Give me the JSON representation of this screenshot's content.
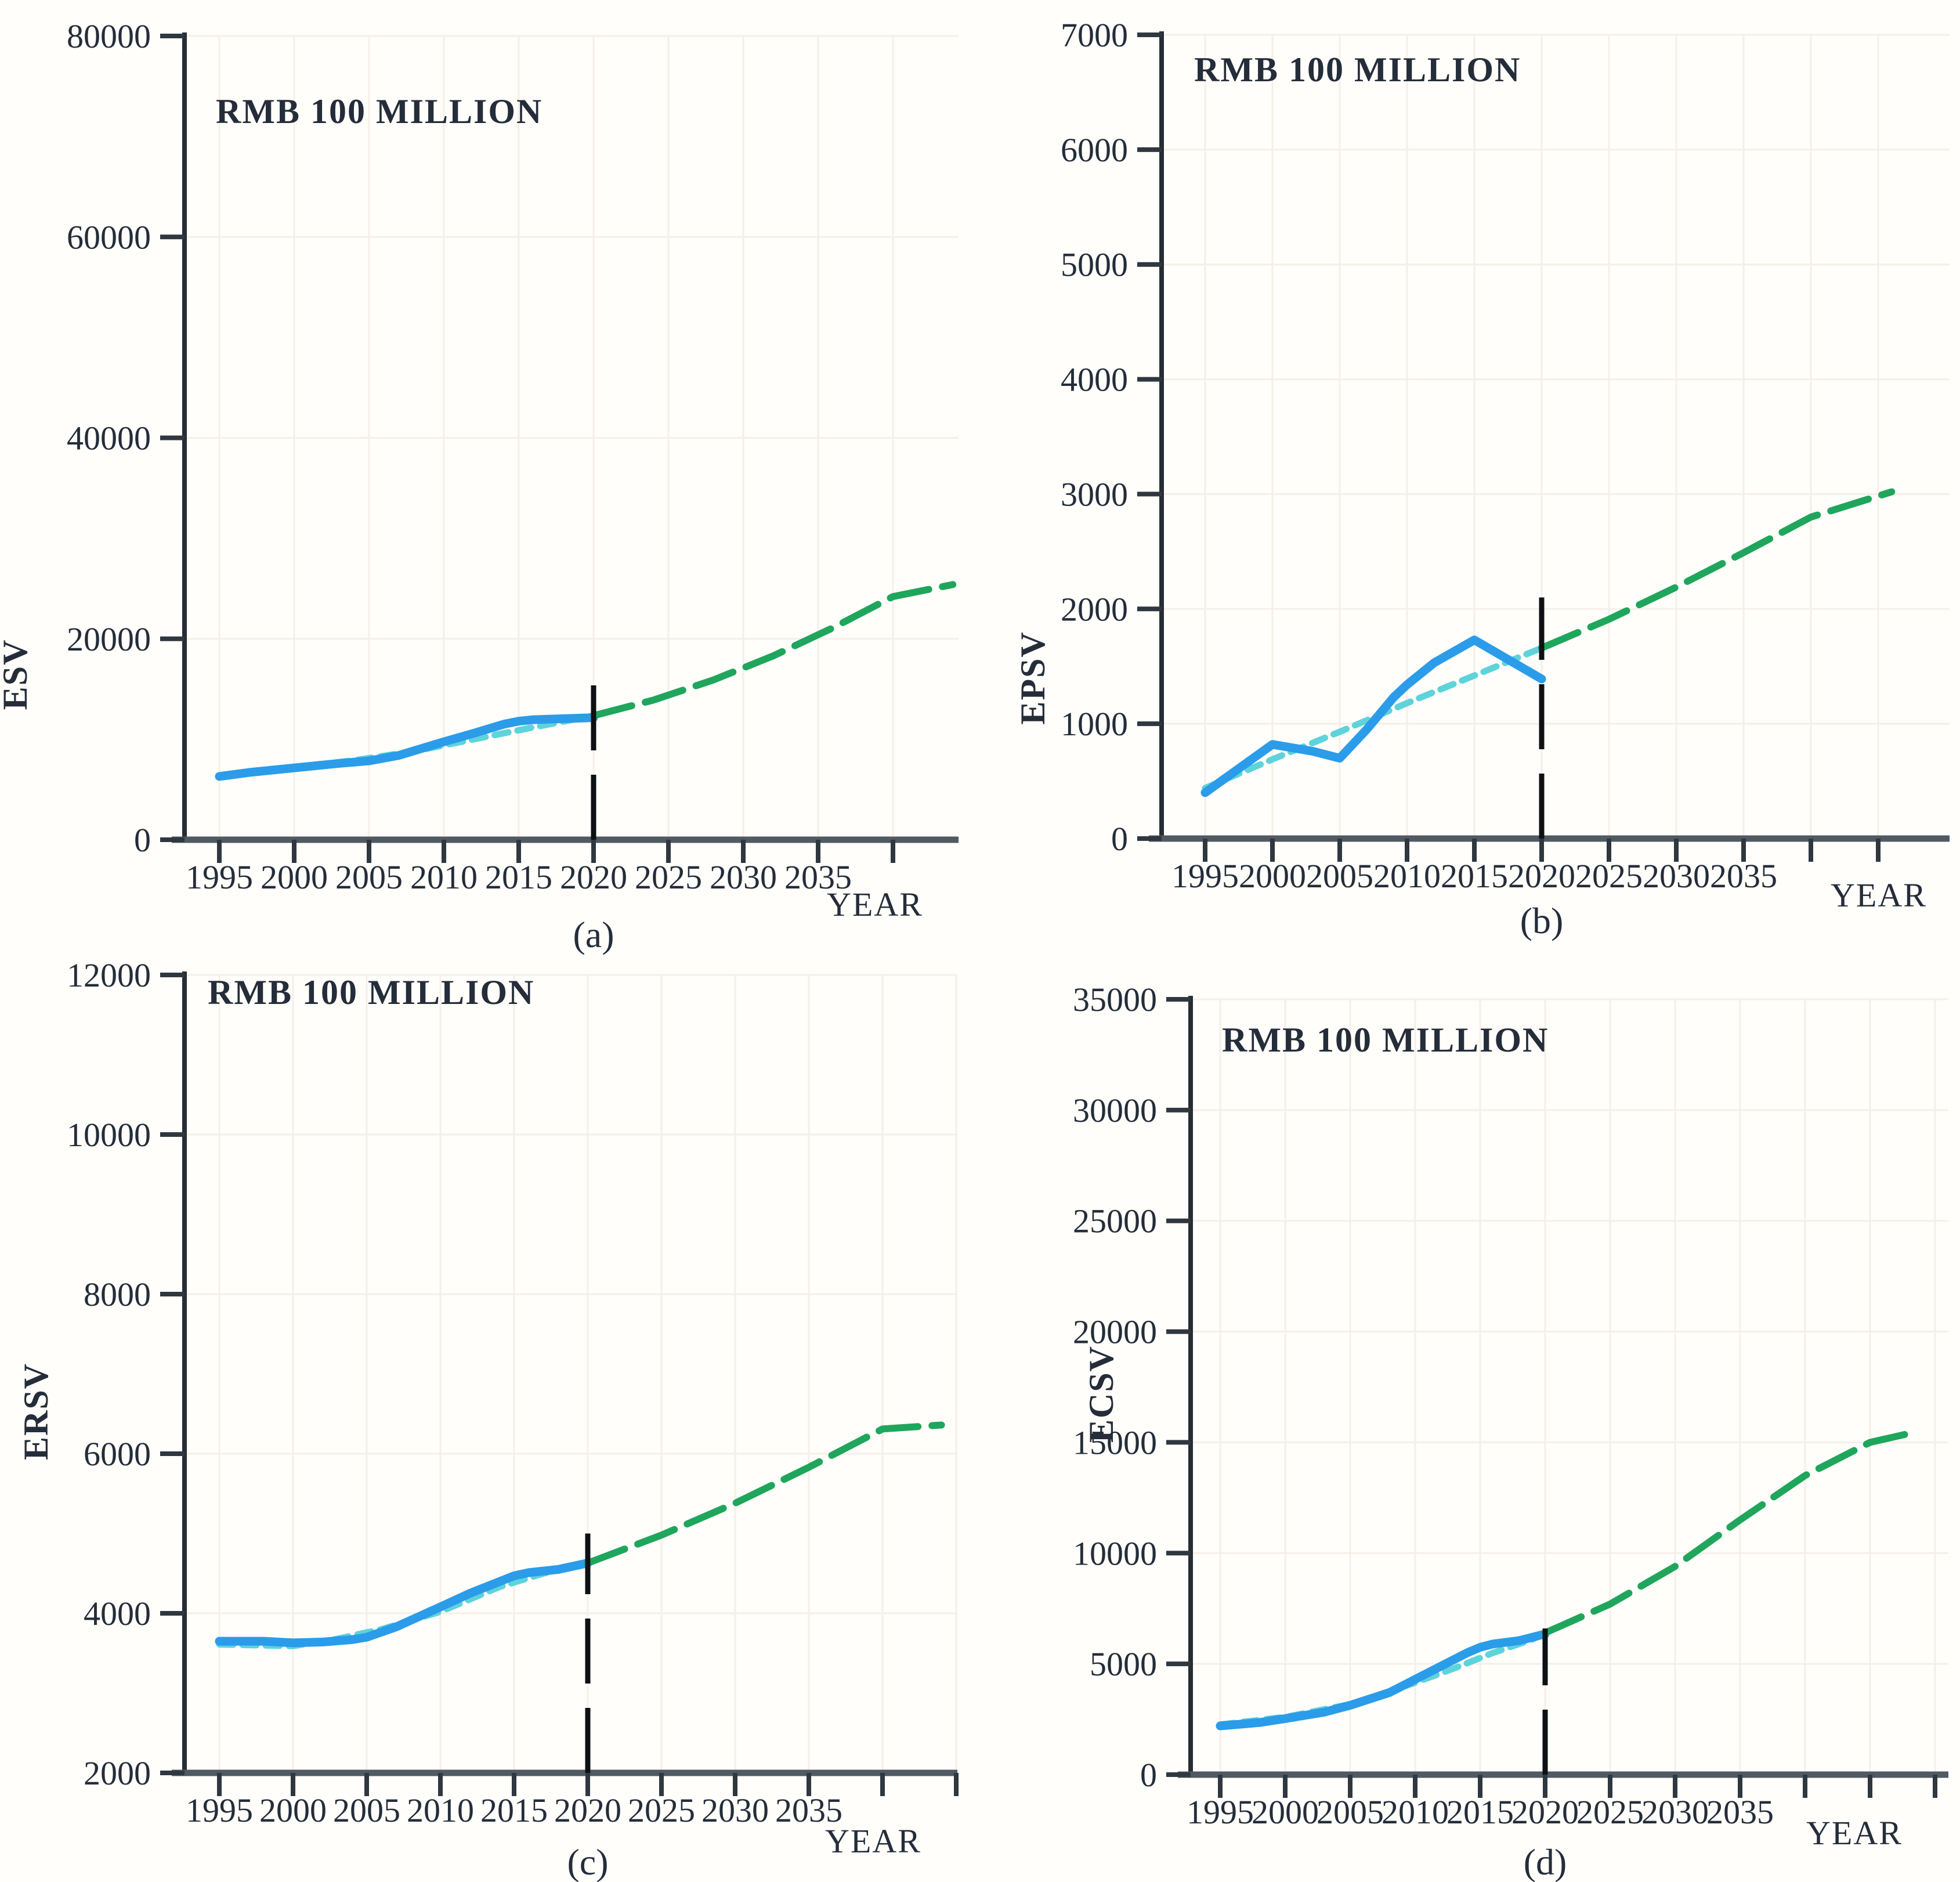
{
  "figure": {
    "unit_label": "RMB 100 MILLION",
    "x_axis_title": "YEAR",
    "background": "#fffefb",
    "colors": {
      "observed": "#2b9ce9",
      "fitted": "#5ed3da",
      "projection": "#1fa65c",
      "divider": "#0d1114",
      "x_axis": "#515a62",
      "y_axis": "#262d34",
      "tick": "#2f373f",
      "grid": "#f5efe8",
      "text": "#242d39"
    },
    "x_tick_labels": [
      "1995",
      "2000",
      "2005",
      "2010",
      "2015",
      "2020",
      "2025",
      "2030",
      "2035"
    ]
  },
  "chart_data": [
    {
      "id": "a",
      "type": "line",
      "panel_label": "(a)",
      "ylabel": "ESV",
      "unit_label": "RMB 100 MILLION",
      "xlabel": "YEAR",
      "ylim": [
        0,
        80000
      ],
      "yticks": [
        0,
        20000,
        40000,
        60000,
        80000
      ],
      "xticks": [
        1995,
        2000,
        2005,
        2010,
        2015,
        2020,
        2025,
        2030,
        2035,
        2040
      ],
      "xtick_labels": [
        "1995",
        "2000",
        "2005",
        "2010",
        "2015",
        "2020",
        "2025",
        "2030",
        "2035"
      ],
      "vline_year": 2020,
      "vline_top": 16000,
      "series": [
        {
          "name": "fitted",
          "points": [
            [
              1995,
              6400
            ],
            [
              2000,
              7200
            ],
            [
              2004,
              7900
            ],
            [
              2008,
              8800
            ],
            [
              2012,
              10000
            ],
            [
              2016,
              11200
            ],
            [
              2019,
              12050
            ],
            [
              2020,
              12350
            ]
          ]
        },
        {
          "name": "observed",
          "points": [
            [
              1995,
              6300
            ],
            [
              1997,
              6700
            ],
            [
              2000,
              7150
            ],
            [
              2003,
              7600
            ],
            [
              2005,
              7850
            ],
            [
              2007,
              8400
            ],
            [
              2010,
              9750
            ],
            [
              2012,
              10600
            ],
            [
              2014,
              11500
            ],
            [
              2015,
              11800
            ],
            [
              2016,
              11950
            ],
            [
              2018,
              12050
            ],
            [
              2020,
              12150
            ]
          ]
        },
        {
          "name": "projection",
          "points": [
            [
              2020,
              12350
            ],
            [
              2024,
              13900
            ],
            [
              2028,
              15900
            ],
            [
              2032,
              18300
            ],
            [
              2036,
              21100
            ],
            [
              2040,
              24200
            ],
            [
              2044,
              25400
            ]
          ]
        }
      ]
    },
    {
      "id": "b",
      "type": "line",
      "panel_label": "(b)",
      "ylabel": "EPSV",
      "unit_label": "RMB 100 MILLION",
      "xlabel": "YEAR",
      "ylim": [
        0,
        7000
      ],
      "yticks": [
        0,
        1000,
        2000,
        3000,
        4000,
        5000,
        6000,
        7000
      ],
      "xticks": [
        1995,
        2000,
        2005,
        2010,
        2015,
        2020,
        2025,
        2030,
        2035,
        2040,
        2045
      ],
      "xtick_labels": [
        "1995",
        "2000",
        "2005",
        "2010",
        "2015",
        "2020",
        "2025",
        "2030",
        "2035"
      ],
      "vline_year": 2020,
      "vline_top": 2100,
      "series": [
        {
          "name": "fitted",
          "points": [
            [
              1995,
              440
            ],
            [
              2000,
              690
            ],
            [
              2005,
              930
            ],
            [
              2010,
              1180
            ],
            [
              2015,
              1420
            ],
            [
              2020,
              1660
            ]
          ]
        },
        {
          "name": "observed",
          "points": [
            [
              1995,
              400
            ],
            [
              2000,
              820
            ],
            [
              2003,
              760
            ],
            [
              2005,
              700
            ],
            [
              2007,
              950
            ],
            [
              2009,
              1230
            ],
            [
              2010,
              1340
            ],
            [
              2012,
              1530
            ],
            [
              2015,
              1730
            ],
            [
              2020,
              1390
            ]
          ]
        },
        {
          "name": "projection",
          "points": [
            [
              2020,
              1660
            ],
            [
              2025,
              1910
            ],
            [
              2030,
              2190
            ],
            [
              2035,
              2490
            ],
            [
              2040,
              2800
            ],
            [
              2046,
              3020
            ]
          ]
        }
      ]
    },
    {
      "id": "c",
      "type": "line",
      "panel_label": "(c)",
      "ylabel": "ERSV",
      "unit_label": "RMB 100 MILLION",
      "xlabel": "YEAR",
      "ylim": [
        2000,
        12000
      ],
      "yticks": [
        2000,
        4000,
        6000,
        8000,
        10000,
        12000
      ],
      "xticks": [
        1995,
        2000,
        2005,
        2010,
        2015,
        2020,
        2025,
        2030,
        2035,
        2040,
        2045
      ],
      "xtick_labels": [
        "1995",
        "2000",
        "2005",
        "2010",
        "2015",
        "2020",
        "2025",
        "2030",
        "2035"
      ],
      "vline_year": 2020,
      "vline_top": 5000,
      "series": [
        {
          "name": "fitted",
          "points": [
            [
              1995,
              3610
            ],
            [
              2000,
              3590
            ],
            [
              2003,
              3680
            ],
            [
              2006,
              3800
            ],
            [
              2010,
              4020
            ],
            [
              2014,
              4330
            ],
            [
              2017,
              4500
            ],
            [
              2020,
              4630
            ]
          ]
        },
        {
          "name": "observed",
          "points": [
            [
              1995,
              3650
            ],
            [
              1998,
              3650
            ],
            [
              2000,
              3630
            ],
            [
              2002,
              3640
            ],
            [
              2004,
              3670
            ],
            [
              2005,
              3700
            ],
            [
              2007,
              3830
            ],
            [
              2010,
              4080
            ],
            [
              2012,
              4250
            ],
            [
              2015,
              4470
            ],
            [
              2016,
              4510
            ],
            [
              2018,
              4550
            ],
            [
              2020,
              4630
            ]
          ]
        },
        {
          "name": "projection",
          "points": [
            [
              2020,
              4630
            ],
            [
              2025,
              4980
            ],
            [
              2030,
              5380
            ],
            [
              2035,
              5830
            ],
            [
              2040,
              6310
            ],
            [
              2044,
              6360
            ]
          ]
        }
      ]
    },
    {
      "id": "d",
      "type": "line",
      "panel_label": "(d)",
      "ylabel": "ECSV",
      "unit_label": "RMB 100 MILLION",
      "xlabel": "YEAR",
      "ylim": [
        0,
        35000
      ],
      "yticks": [
        0,
        5000,
        10000,
        15000,
        20000,
        25000,
        30000,
        35000
      ],
      "xticks": [
        1995,
        2000,
        2005,
        2010,
        2015,
        2020,
        2025,
        2030,
        2035,
        2040,
        2045,
        2050
      ],
      "xtick_labels": [
        "1995",
        "2000",
        "2005",
        "2010",
        "2015",
        "2020",
        "2025",
        "2030",
        "2035"
      ],
      "vline_year": 2020,
      "vline_top": 6600,
      "series": [
        {
          "name": "fitted",
          "points": [
            [
              1995,
              2260
            ],
            [
              2000,
              2600
            ],
            [
              2005,
              3180
            ],
            [
              2010,
              4150
            ],
            [
              2013,
              4800
            ],
            [
              2016,
              5500
            ],
            [
              2019,
              6100
            ],
            [
              2020,
              6400
            ]
          ]
        },
        {
          "name": "observed",
          "points": [
            [
              1995,
              2200
            ],
            [
              1998,
              2350
            ],
            [
              2000,
              2530
            ],
            [
              2003,
              2820
            ],
            [
              2005,
              3130
            ],
            [
              2008,
              3700
            ],
            [
              2010,
              4300
            ],
            [
              2012,
              4900
            ],
            [
              2014,
              5500
            ],
            [
              2015,
              5750
            ],
            [
              2016,
              5900
            ],
            [
              2018,
              6050
            ],
            [
              2020,
              6350
            ]
          ]
        },
        {
          "name": "projection",
          "points": [
            [
              2020,
              6400
            ],
            [
              2025,
              7700
            ],
            [
              2030,
              9400
            ],
            [
              2035,
              11500
            ],
            [
              2040,
              13500
            ],
            [
              2045,
              15000
            ],
            [
              2048,
              15400
            ]
          ]
        }
      ]
    }
  ]
}
